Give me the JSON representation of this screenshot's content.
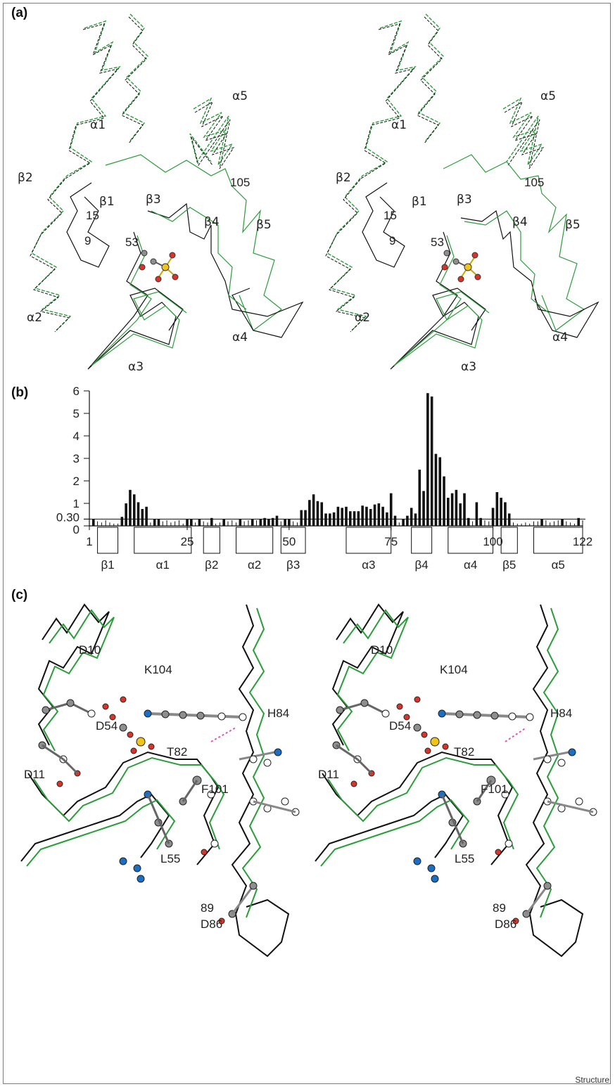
{
  "panels": {
    "a": {
      "label": "(a)"
    },
    "b": {
      "label": "(b)"
    },
    "c": {
      "label": "(c)"
    }
  },
  "panel_a_labels": [
    "α1",
    "α2",
    "α3",
    "α4",
    "α5",
    "β1",
    "β2",
    "β3",
    "β4",
    "β5",
    "15",
    "9",
    "53",
    "105"
  ],
  "panel_c_labels": [
    "D10",
    "D11",
    "D54",
    "K104",
    "H84",
    "T82",
    "F101",
    "L55",
    "89",
    "D86"
  ],
  "chart_data": {
    "type": "bar",
    "title": "",
    "xlabel": "",
    "ylabel": "",
    "ylim": [
      0,
      6
    ],
    "xlim": [
      1,
      122
    ],
    "yticks": [
      "0",
      "0.30",
      "1",
      "2",
      "3",
      "4",
      "5",
      "6"
    ],
    "xticks": [
      "1",
      "25",
      "50",
      "75",
      "100",
      "122"
    ],
    "threshold": 0.3,
    "x": [
      1,
      2,
      3,
      4,
      5,
      6,
      7,
      8,
      9,
      10,
      11,
      12,
      13,
      14,
      15,
      16,
      17,
      18,
      19,
      20,
      21,
      22,
      23,
      24,
      25,
      26,
      27,
      28,
      29,
      30,
      31,
      32,
      33,
      34,
      35,
      36,
      37,
      38,
      39,
      40,
      41,
      42,
      43,
      44,
      45,
      46,
      47,
      48,
      49,
      50,
      51,
      52,
      53,
      54,
      55,
      56,
      57,
      58,
      59,
      60,
      61,
      62,
      63,
      64,
      65,
      66,
      67,
      68,
      69,
      70,
      71,
      72,
      73,
      74,
      75,
      76,
      77,
      78,
      79,
      80,
      81,
      82,
      83,
      84,
      85,
      86,
      87,
      88,
      89,
      90,
      91,
      92,
      93,
      94,
      95,
      96,
      97,
      98,
      99,
      100,
      101,
      102,
      103,
      104,
      105,
      106,
      107,
      108,
      109,
      110,
      111,
      112,
      113,
      114,
      115,
      116,
      117,
      118,
      119,
      120,
      121,
      122
    ],
    "values": [
      0.1,
      0.3,
      0.2,
      0.15,
      0.25,
      0.15,
      0.1,
      0.1,
      0.4,
      1.0,
      1.6,
      1.4,
      1.05,
      0.75,
      0.85,
      0.15,
      0.3,
      0.3,
      0.2,
      0.25,
      0.15,
      0.2,
      0.25,
      0.1,
      0.3,
      0.3,
      0.15,
      0.3,
      0.2,
      0.15,
      0.35,
      0.1,
      0.15,
      0.3,
      0.2,
      0.25,
      0.15,
      0.3,
      0.2,
      0.25,
      0.3,
      0.25,
      0.3,
      0.35,
      0.3,
      0.35,
      0.45,
      0.2,
      0.3,
      0.3,
      0.2,
      0.15,
      0.7,
      0.7,
      1.15,
      1.4,
      1.1,
      1.05,
      0.55,
      0.55,
      0.6,
      0.85,
      0.8,
      0.85,
      0.65,
      0.65,
      0.65,
      0.9,
      0.85,
      0.75,
      0.95,
      1.0,
      0.85,
      0.6,
      1.45,
      0.45,
      0.15,
      0.3,
      0.45,
      0.8,
      0.55,
      2.5,
      1.55,
      5.9,
      5.75,
      3.2,
      3.05,
      2.2,
      1.25,
      1.45,
      1.6,
      1.0,
      1.45,
      0.35,
      0.2,
      1.05,
      0.35,
      0.25,
      0.2,
      0.8,
      1.5,
      1.25,
      1.05,
      0.55,
      0.15,
      0.1,
      0.1,
      0.15,
      0.1,
      0.2,
      0.2,
      0.3,
      0.25,
      0.15,
      0.2,
      0.25,
      0.3,
      0.2,
      0.15,
      0.1,
      0.35,
      0.25
    ],
    "secondary_structure": [
      {
        "name": "β1",
        "start": 3,
        "end": 8
      },
      {
        "name": "α1",
        "start": 12,
        "end": 26
      },
      {
        "name": "β2",
        "start": 29,
        "end": 33
      },
      {
        "name": "α2",
        "start": 37,
        "end": 46
      },
      {
        "name": "β3",
        "start": 48,
        "end": 54
      },
      {
        "name": "α3",
        "start": 64,
        "end": 75
      },
      {
        "name": "β4",
        "start": 80,
        "end": 85
      },
      {
        "name": "α4",
        "start": 89,
        "end": 100
      },
      {
        "name": "β5",
        "start": 102,
        "end": 106
      },
      {
        "name": "α5",
        "start": 110,
        "end": 122
      }
    ]
  },
  "credit": "Structure",
  "colors": {
    "green_trace": "#2a9d3a",
    "black_trace": "#111111",
    "oxygen": "#d8342a",
    "nitrogen": "#1a6fc4",
    "phosphorus": "#f0c419",
    "carbon": "#8e8e8e",
    "hbond": "#e05aa8"
  }
}
